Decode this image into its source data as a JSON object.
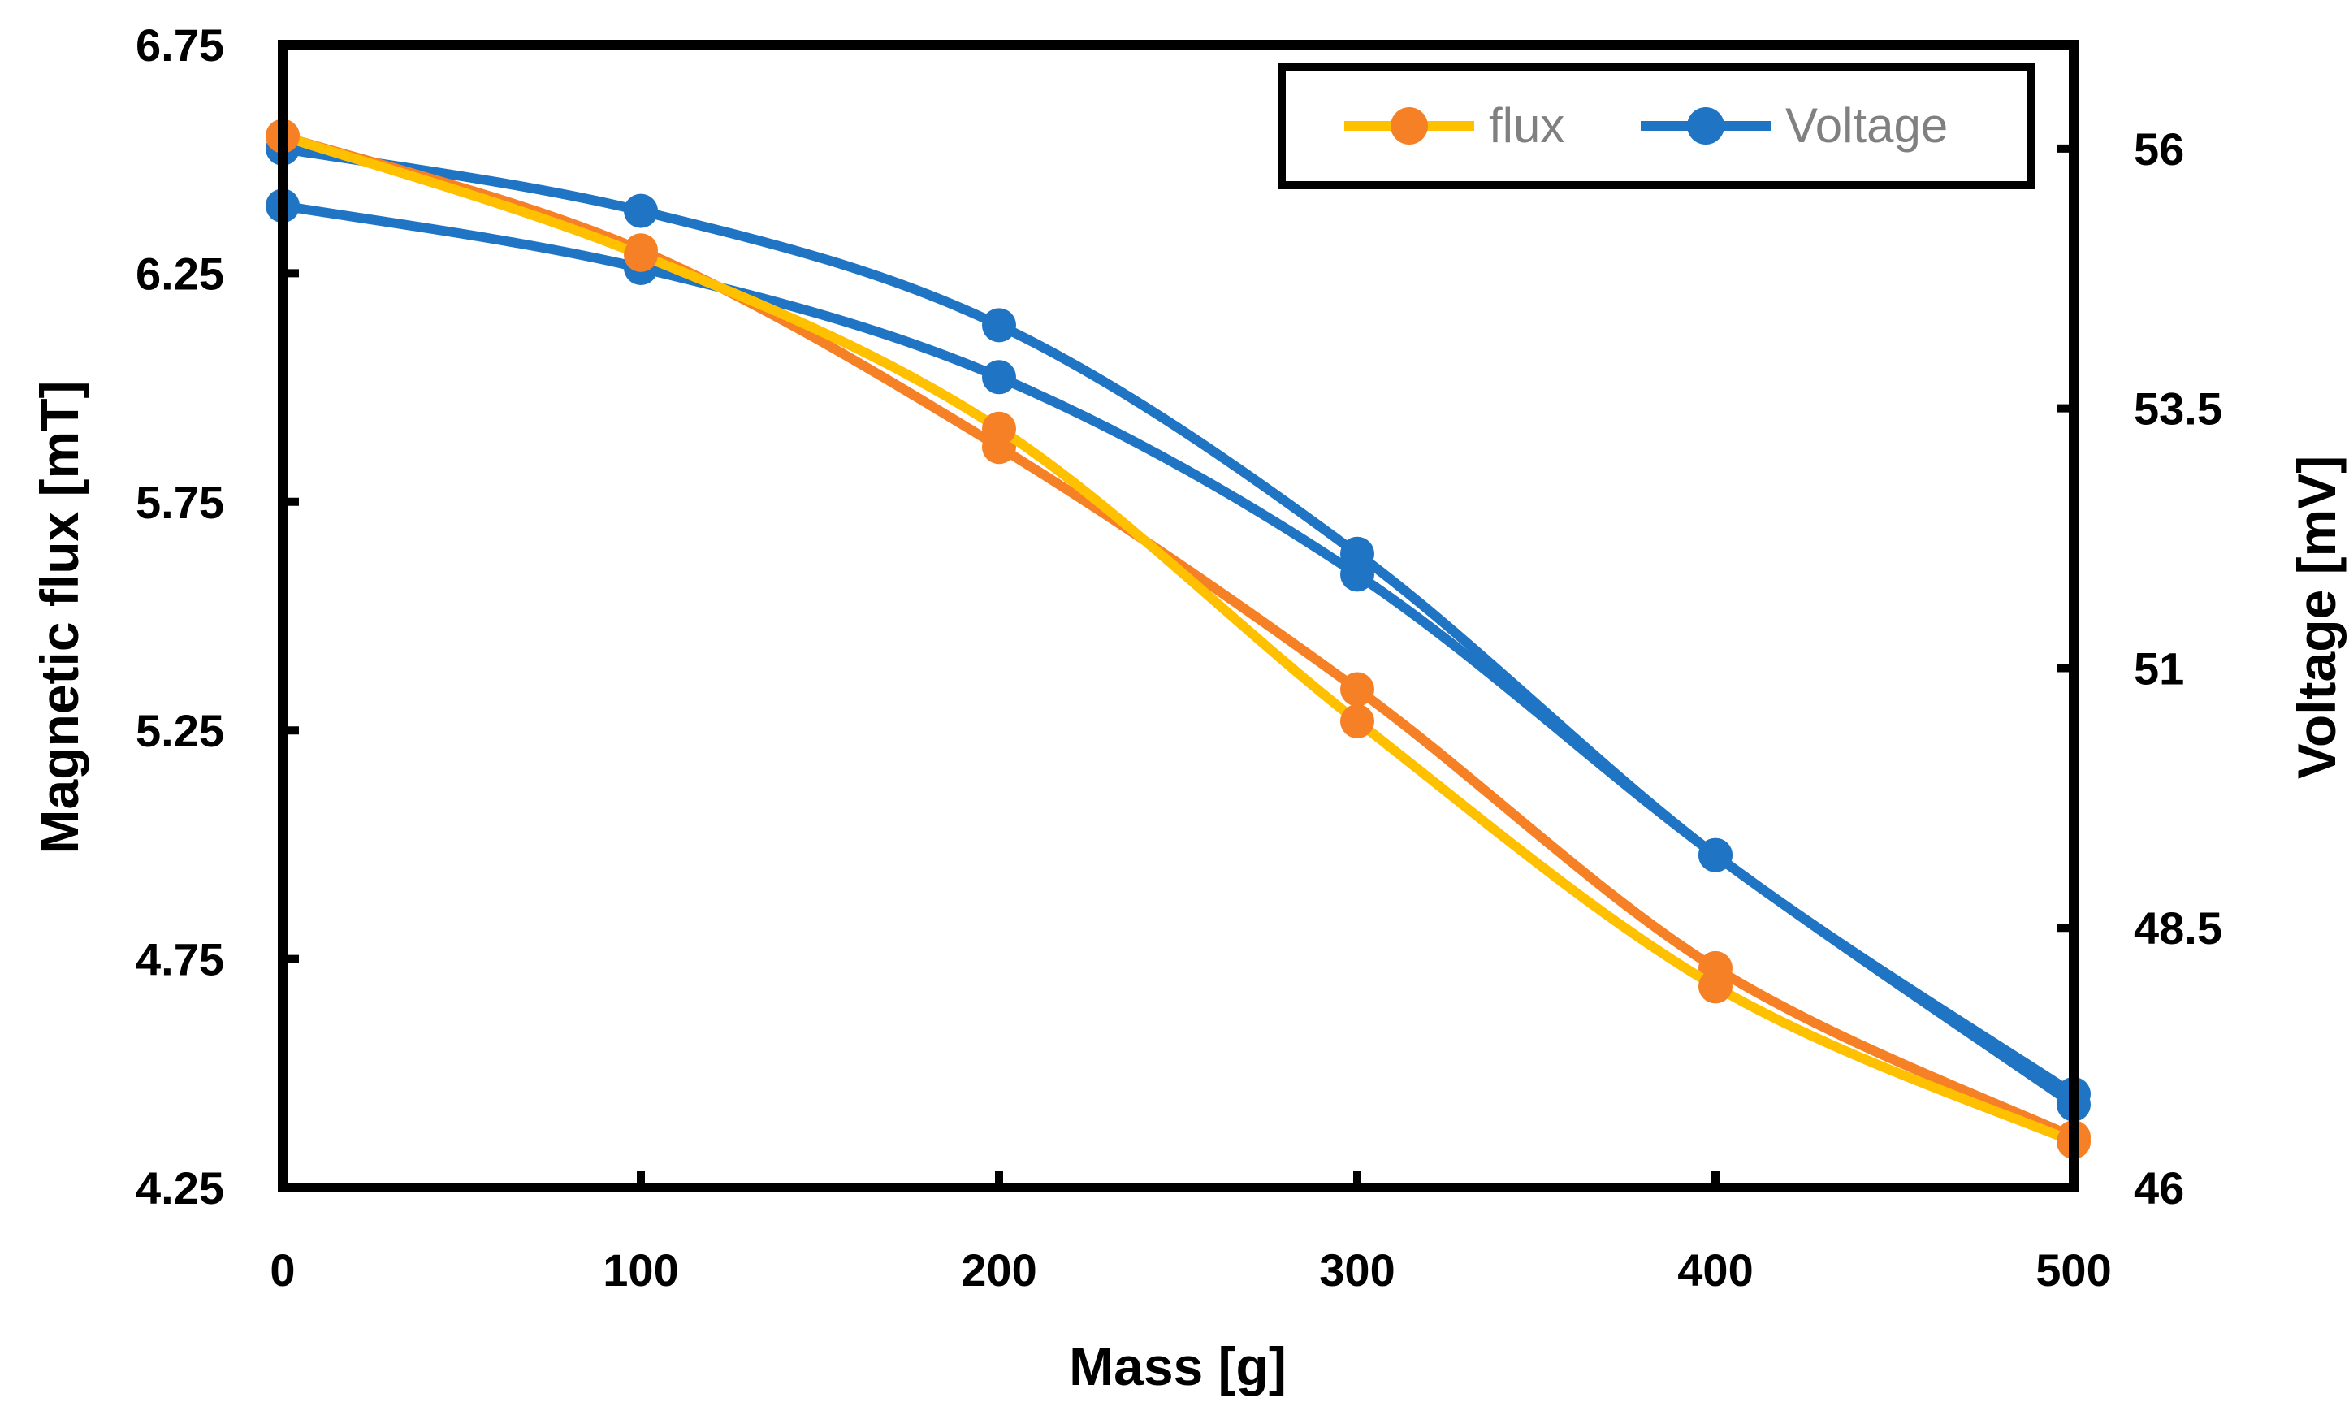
{
  "chart_data": {
    "type": "line",
    "x": [
      0,
      100,
      200,
      300,
      400,
      500
    ],
    "xlabel": "Mass [g]",
    "ylabel_left": "Magnetic flux [mT]",
    "ylabel_right": "Voltage [mV]",
    "xlim": [
      0,
      500
    ],
    "ylim_left": [
      4.25,
      6.75
    ],
    "ylim_right": [
      46,
      57
    ],
    "xticks": [
      "0",
      "100",
      "200",
      "300",
      "400",
      "500"
    ],
    "yticks_left": [
      "4.25",
      "4.75",
      "5.25",
      "5.75",
      "6.25",
      "6.75"
    ],
    "yticks_right": [
      "46",
      "48.5",
      "51",
      "53.5",
      "56"
    ],
    "grid": false,
    "legend_position": "top-right",
    "legend": [
      {
        "label": "flux",
        "line_color": "#FFC000",
        "marker_color": "#F58025"
      },
      {
        "label": "Voltage",
        "line_color": "#1F74C4",
        "marker_color": "#1F74C4"
      }
    ],
    "series": [
      {
        "name": "flux",
        "axis": "left",
        "color": "#FFC000",
        "marker_color": "#F58025",
        "values": [
          6.55,
          6.29,
          5.91,
          5.27,
          4.69,
          4.35
        ]
      },
      {
        "name": "flux",
        "axis": "left",
        "color": "#F58025",
        "marker_color": "#F58025",
        "values": [
          6.55,
          6.3,
          5.87,
          5.34,
          4.73,
          4.36
        ]
      },
      {
        "name": "Voltage",
        "axis": "right",
        "color": "#1F74C4",
        "marker_color": "#1F74C4",
        "values": [
          56.0,
          55.4,
          54.3,
          52.1,
          49.2,
          46.9
        ]
      },
      {
        "name": "Voltage",
        "axis": "right",
        "color": "#1F74C4",
        "marker_color": "#1F74C4",
        "values": [
          55.45,
          54.85,
          53.8,
          51.9,
          49.2,
          46.8
        ]
      }
    ]
  }
}
